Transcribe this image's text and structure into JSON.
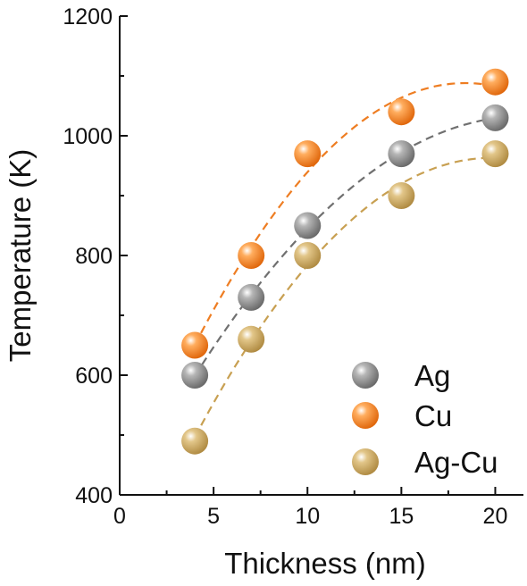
{
  "chart_data": {
    "type": "scatter",
    "xlabel": "Thickness (nm)",
    "ylabel": "Temperature (K)",
    "xlim": [
      0,
      21.5
    ],
    "ylim": [
      400,
      1200
    ],
    "xticks": [
      0,
      5,
      10,
      15,
      20
    ],
    "yticks": [
      400,
      600,
      800,
      1000,
      1200
    ],
    "grid": false,
    "legend_position": "bottom-right",
    "series": [
      {
        "name": "Ag",
        "color": "#7d7d7d",
        "x": [
          4,
          7,
          10,
          15,
          20
        ],
        "y": [
          600,
          730,
          850,
          970,
          1030
        ],
        "fit_line": "dashed"
      },
      {
        "name": "Cu",
        "color": "#f07f1a",
        "x": [
          4,
          7,
          10,
          15,
          20
        ],
        "y": [
          650,
          800,
          970,
          1040,
          1090
        ],
        "fit_line": "dashed"
      },
      {
        "name": "Ag-Cu",
        "color": "#c9a55c",
        "x": [
          4,
          7,
          10,
          15,
          20
        ],
        "y": [
          490,
          660,
          800,
          900,
          970
        ],
        "fit_line": "dashed"
      }
    ]
  }
}
